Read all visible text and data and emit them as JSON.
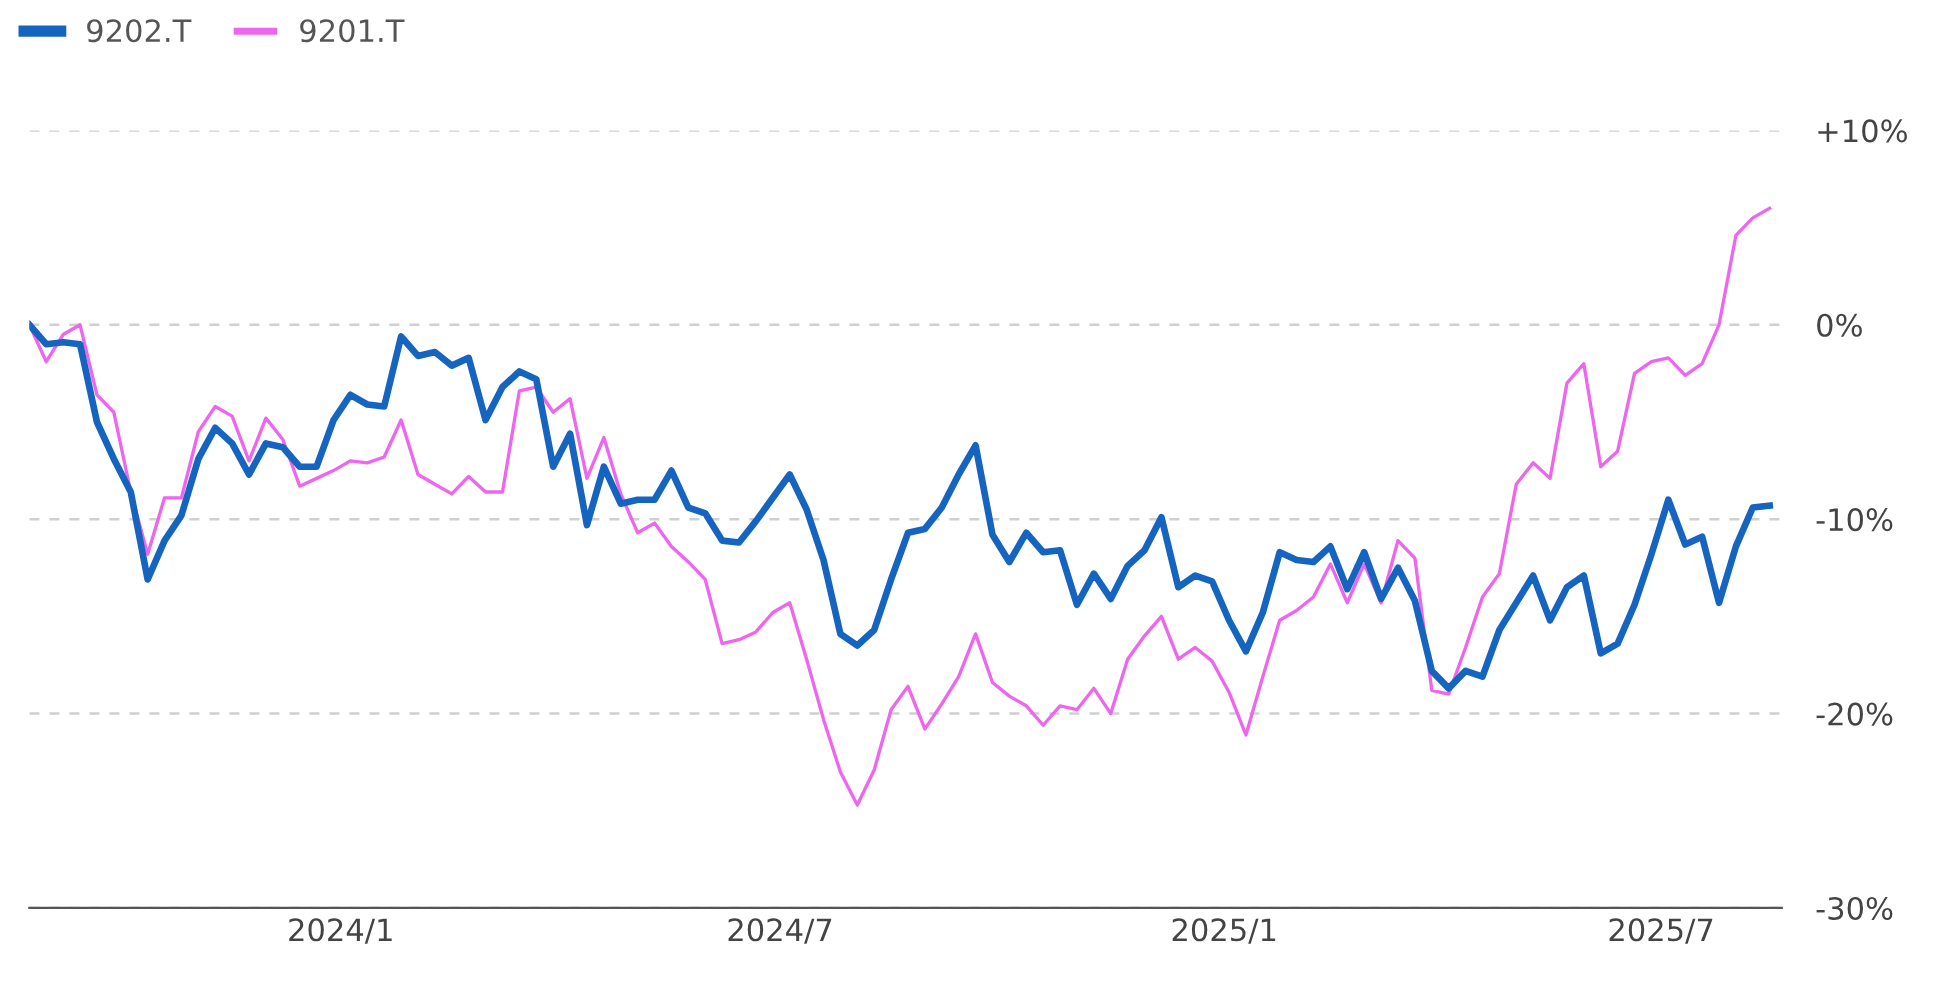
{
  "chart_data": {
    "type": "line",
    "x": [
      "2023-08-25",
      "2023-09-01",
      "2023-09-08",
      "2023-09-15",
      "2023-09-22",
      "2023-09-29",
      "2023-10-06",
      "2023-10-13",
      "2023-10-20",
      "2023-10-27",
      "2023-11-03",
      "2023-11-10",
      "2023-11-17",
      "2023-11-24",
      "2023-12-01",
      "2023-12-08",
      "2023-12-15",
      "2023-12-22",
      "2023-12-29",
      "2024-01-05",
      "2024-01-12",
      "2024-01-19",
      "2024-01-26",
      "2024-02-02",
      "2024-02-09",
      "2024-02-16",
      "2024-02-23",
      "2024-03-01",
      "2024-03-08",
      "2024-03-15",
      "2024-03-22",
      "2024-03-29",
      "2024-04-05",
      "2024-04-12",
      "2024-04-19",
      "2024-04-26",
      "2024-05-03",
      "2024-05-10",
      "2024-05-17",
      "2024-05-24",
      "2024-05-31",
      "2024-06-07",
      "2024-06-14",
      "2024-06-21",
      "2024-06-28",
      "2024-07-05",
      "2024-07-12",
      "2024-07-19",
      "2024-07-26",
      "2024-08-02",
      "2024-08-09",
      "2024-08-16",
      "2024-08-23",
      "2024-08-30",
      "2024-09-06",
      "2024-09-13",
      "2024-09-20",
      "2024-09-27",
      "2024-10-04",
      "2024-10-11",
      "2024-10-18",
      "2024-10-25",
      "2024-11-01",
      "2024-11-08",
      "2024-11-15",
      "2024-11-22",
      "2024-11-29",
      "2024-12-06",
      "2024-12-13",
      "2024-12-20",
      "2024-12-27",
      "2025-01-03",
      "2025-01-10",
      "2025-01-17",
      "2025-01-24",
      "2025-01-31",
      "2025-02-07",
      "2025-02-14",
      "2025-02-21",
      "2025-02-28",
      "2025-03-07",
      "2025-03-14",
      "2025-03-21",
      "2025-03-28",
      "2025-04-04",
      "2025-04-11",
      "2025-04-18",
      "2025-04-25",
      "2025-05-02",
      "2025-05-09",
      "2025-05-16",
      "2025-05-23",
      "2025-05-30",
      "2025-06-06",
      "2025-06-13",
      "2025-06-20",
      "2025-06-27",
      "2025-07-04",
      "2025-07-11",
      "2025-07-18",
      "2025-07-25",
      "2025-08-01",
      "2025-08-08",
      "2025-08-15"
    ],
    "series": [
      {
        "name": "9202.T",
        "color": "#1565c0",
        "values": [
          0,
          -1.0,
          -0.9,
          -1.0,
          -5.0,
          -6.9,
          -8.6,
          -13.1,
          -11.1,
          -9.8,
          -6.9,
          -5.3,
          -6.1,
          -7.7,
          -6.1,
          -6.3,
          -7.3,
          -7.3,
          -4.9,
          -3.6,
          -4.1,
          -4.2,
          -0.6,
          -1.6,
          -1.4,
          -2.1,
          -1.7,
          -4.9,
          -3.2,
          -2.4,
          -2.8,
          -7.3,
          -5.6,
          -10.3,
          -7.3,
          -9.2,
          -9.0,
          -9.0,
          -7.5,
          -9.4,
          -9.7,
          -11.1,
          -11.2,
          -10.1,
          -8.9,
          -7.7,
          -9.5,
          -12.1,
          -15.9,
          -16.5,
          -15.7,
          -13.1,
          -10.7,
          -10.5,
          -9.4,
          -7.7,
          -6.2,
          -10.8,
          -12.2,
          -10.7,
          -11.7,
          -11.6,
          -14.4,
          -12.8,
          -14.1,
          -12.4,
          -11.6,
          -9.9,
          -13.5,
          -12.9,
          -13.2,
          -15.2,
          -16.8,
          -14.8,
          -11.7,
          -12.1,
          -12.2,
          -11.4,
          -13.6,
          -11.7,
          -14.1,
          -12.5,
          -14.2,
          -17.8,
          -18.7,
          -17.8,
          -18.1,
          -15.7,
          -14.3,
          -12.9,
          -15.2,
          -13.5,
          -12.9,
          -16.9,
          -16.4,
          -14.4,
          -11.8,
          -9.0,
          -11.3,
          -10.9,
          -14.3,
          -11.4,
          -9.4,
          -9.3
        ]
      },
      {
        "name": "9201.T",
        "color": "#ee66ee",
        "values": [
          0,
          -1.9,
          -0.5,
          0.0,
          -3.6,
          -4.5,
          -8.6,
          -11.8,
          -8.9,
          -8.9,
          -5.5,
          -4.2,
          -4.7,
          -7.0,
          -4.8,
          -5.9,
          -8.3,
          -7.9,
          -7.5,
          -7.0,
          -7.1,
          -6.8,
          -4.9,
          -7.7,
          -8.2,
          -8.7,
          -7.8,
          -8.6,
          -8.6,
          -3.4,
          -3.2,
          -4.5,
          -3.8,
          -7.9,
          -5.8,
          -8.7,
          -10.7,
          -10.2,
          -11.4,
          -12.2,
          -13.1,
          -16.4,
          -16.2,
          -15.8,
          -14.8,
          -14.3,
          -17.2,
          -20.3,
          -23.0,
          -24.7,
          -22.9,
          -19.8,
          -18.6,
          -20.8,
          -19.5,
          -18.1,
          -15.9,
          -18.4,
          -19.1,
          -19.6,
          -20.6,
          -19.6,
          -19.8,
          -18.7,
          -20.0,
          -17.2,
          -16.0,
          -15.0,
          -17.2,
          -16.6,
          -17.3,
          -18.9,
          -21.1,
          -18.1,
          -15.2,
          -14.7,
          -14.0,
          -12.3,
          -14.3,
          -12.3,
          -14.3,
          -11.1,
          -12.0,
          -18.8,
          -19.0,
          -16.6,
          -14.0,
          -12.8,
          -8.2,
          -7.1,
          -7.9,
          -3.0,
          -2.0,
          -7.3,
          -6.5,
          -2.5,
          -1.9,
          -1.7,
          -2.6,
          -2.0,
          0.0,
          4.6,
          5.5,
          6.0
        ]
      }
    ],
    "xlim": [
      "2023-08-25",
      "2025-08-20"
    ],
    "xticks": [
      {
        "value": "2024-01-01",
        "label": "2024/1"
      },
      {
        "value": "2024-07-01",
        "label": "2024/7"
      },
      {
        "value": "2025-01-01",
        "label": "2025/1"
      },
      {
        "value": "2025-07-01",
        "label": "2025/7"
      }
    ],
    "ylim": [
      -30,
      10
    ],
    "yticks": [
      {
        "value": -30,
        "label": "-30%"
      },
      {
        "value": -20,
        "label": "-20%"
      },
      {
        "value": -10,
        "label": "-10%"
      },
      {
        "value": 0,
        "label": "0%"
      },
      {
        "value": 10,
        "label": "+10%"
      }
    ],
    "grid": "y",
    "legend": "top left",
    "marker": "none",
    "line_style": "solid"
  }
}
